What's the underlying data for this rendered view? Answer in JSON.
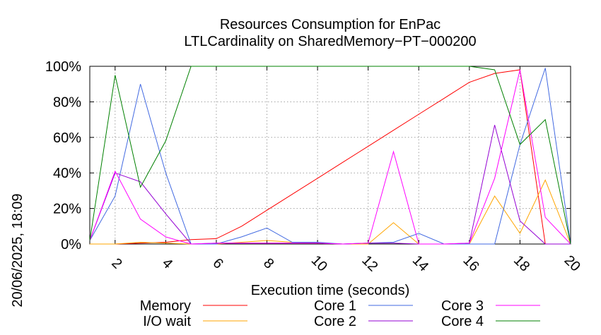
{
  "chart_data": {
    "type": "line",
    "title": "Resources Consumption for EnPac",
    "subtitle": "LTLCardinality on SharedMemory−PT−000200",
    "xlabel": "Execution time (seconds)",
    "ylabel": "",
    "side_label": "20/06/2025, 18:09",
    "xlim": [
      1,
      20
    ],
    "ylim": [
      0,
      100
    ],
    "x_ticks": [
      2,
      4,
      6,
      8,
      10,
      12,
      14,
      16,
      18,
      20
    ],
    "x_tick_labels": [
      "2",
      "4",
      "6",
      "8",
      "10",
      "12",
      "14",
      "16",
      "18",
      "20"
    ],
    "y_ticks": [
      0,
      20,
      40,
      60,
      80,
      100
    ],
    "y_tick_labels": [
      "0%",
      "20%",
      "40%",
      "60%",
      "80%",
      "100%"
    ],
    "grid": true,
    "legend_position": "bottom",
    "x": [
      1,
      2,
      3,
      4,
      5,
      6,
      7,
      8,
      9,
      10,
      11,
      12,
      13,
      14,
      15,
      16,
      17,
      18,
      19,
      20
    ],
    "series": [
      {
        "name": "Memory",
        "color": "#ff0000",
        "values": [
          0,
          0,
          0.5,
          1,
          2.5,
          3,
          10,
          19,
          28,
          37,
          46,
          55,
          64,
          73,
          82,
          91,
          96,
          98,
          0,
          0
        ]
      },
      {
        "name": "I/O wait",
        "color": "#ffa500",
        "values": [
          0,
          0,
          1,
          0.5,
          0,
          0,
          1,
          2,
          1,
          0.5,
          0,
          0,
          12,
          0,
          0,
          0,
          27,
          6,
          36,
          0
        ]
      },
      {
        "name": "Core 1",
        "color": "#4169e1",
        "values": [
          2,
          27,
          90,
          40,
          0,
          0,
          4,
          9,
          1,
          1,
          0,
          0.5,
          1,
          6,
          0,
          0,
          0,
          56,
          99,
          0
        ]
      },
      {
        "name": "Core 2",
        "color": "#9400d3",
        "values": [
          2,
          40,
          35,
          17,
          0,
          0.5,
          0.5,
          0.5,
          0.5,
          0.5,
          0,
          0.5,
          0.5,
          0,
          0,
          0.5,
          67,
          13,
          0,
          0
        ]
      },
      {
        "name": "Core 3",
        "color": "#ff00ff",
        "values": [
          2,
          41,
          14,
          4,
          0,
          0.5,
          0.5,
          0.5,
          0.5,
          0.5,
          0,
          0.5,
          52,
          0,
          0,
          0.5,
          37,
          98,
          15,
          0
        ]
      },
      {
        "name": "Core 4",
        "color": "#008000",
        "values": [
          2,
          95,
          32,
          58,
          100,
          100,
          100,
          100,
          100,
          100,
          100,
          100,
          100,
          100,
          100,
          100,
          98,
          56,
          70,
          0
        ]
      }
    ]
  }
}
